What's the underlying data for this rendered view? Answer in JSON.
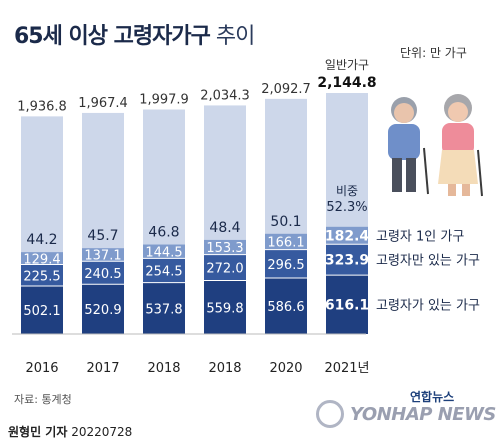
{
  "title": {
    "bold": "65세 이상 고령자가구",
    "light": "추이"
  },
  "unit": "단위: 만 가구",
  "source": "자료: 통계청",
  "credit": {
    "name": "원형민 기자",
    "date": "20220728"
  },
  "logo": {
    "korean": "연합뉴스",
    "english": "YONHAP NEWS"
  },
  "colors": {
    "general": "#cdd7ea",
    "alone": "#b3c3e0",
    "elderly_only": "#7f9bcc",
    "elderly_only_dark": "#365a9f",
    "with_elderly": "#1f3f80",
    "text_dark": "#1b2a4a"
  },
  "chart_data": {
    "type": "bar",
    "categories": [
      "2016",
      "2017",
      "2018",
      "2018",
      "2020",
      "2021년"
    ],
    "series": [
      {
        "name": "고령자가 있는 가구",
        "values": [
          502.1,
          520.9,
          537.8,
          559.8,
          586.6,
          616.1
        ]
      },
      {
        "name": "고령자만 있는 가구",
        "values": [
          225.5,
          240.5,
          254.5,
          272.0,
          296.5,
          323.9
        ]
      },
      {
        "name": "고령자 1인 가구",
        "values": [
          129.4,
          137.1,
          144.5,
          153.3,
          166.1,
          182.4
        ]
      },
      {
        "name": "비중",
        "values": [
          44.2,
          45.7,
          46.8,
          48.4,
          50.1,
          52.3
        ]
      },
      {
        "name": "일반가구",
        "values": [
          1936.8,
          1967.4,
          1997.9,
          2034.3,
          2092.7,
          2144.8
        ]
      }
    ],
    "value_labels": {
      "with_elderly": [
        "502.1",
        "520.9",
        "537.8",
        "559.8",
        "586.6",
        "616.1"
      ],
      "elderly_only": [
        "225.5",
        "240.5",
        "254.5",
        "272.0",
        "296.5",
        "323.9"
      ],
      "alone": [
        "129.4",
        "137.1",
        "144.5",
        "153.3",
        "166.1",
        "182.4"
      ],
      "ratio": [
        "44.2",
        "45.7",
        "46.8",
        "48.4",
        "50.1",
        "52.3%"
      ],
      "general": [
        "1,936.8",
        "1,967.4",
        "1,997.9",
        "2,034.3",
        "2,092.7",
        "2,144.8"
      ]
    },
    "legend_labels": {
      "alone": "고령자 1인 가구",
      "elderly_only": "고령자만 있는 가구",
      "with_elderly": "고령자가 있는 가구",
      "general": "일반가구",
      "ratio": "비중"
    }
  }
}
